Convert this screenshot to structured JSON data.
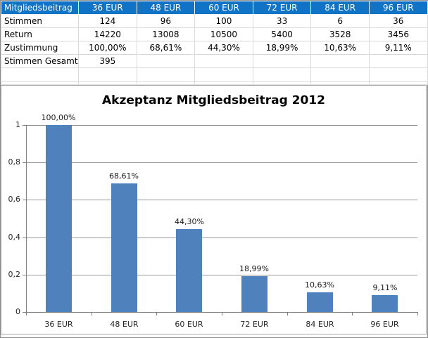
{
  "table": {
    "header": [
      "Mitgliedsbeitrag",
      "36 EUR",
      "48 EUR",
      "60 EUR",
      "72 EUR",
      "84 EUR",
      "96 EUR"
    ],
    "rows": [
      {
        "label": "Stimmen",
        "values": [
          "124",
          "96",
          "100",
          "33",
          "6",
          "36"
        ]
      },
      {
        "label": "Return",
        "values": [
          "14220",
          "13008",
          "10500",
          "5400",
          "3528",
          "3456"
        ]
      },
      {
        "label": "Zustimmung",
        "values": [
          "100,00%",
          "68,61%",
          "44,30%",
          "18,99%",
          "10,63%",
          "9,11%"
        ]
      },
      {
        "label": "Stimmen Gesamt",
        "values": [
          "395",
          "",
          "",
          "",
          "",
          ""
        ]
      },
      {
        "label": "",
        "values": [
          "",
          "",
          "",
          "",
          "",
          ""
        ]
      }
    ]
  },
  "chart_data": {
    "type": "bar",
    "title": "Akzeptanz Mitgliedsbeitrag 2012",
    "categories": [
      "36 EUR",
      "48 EUR",
      "60 EUR",
      "72 EUR",
      "84 EUR",
      "96 EUR"
    ],
    "values": [
      1.0,
      0.6861,
      0.443,
      0.1899,
      0.1063,
      0.0911
    ],
    "data_labels": [
      "100,00%",
      "68,61%",
      "44,30%",
      "18,99%",
      "10,63%",
      "9,11%"
    ],
    "y_tick_labels": [
      "1",
      "0,8",
      "0,6",
      "0,4",
      "0,2",
      "0"
    ],
    "y_tick_values": [
      1.0,
      0.8,
      0.6,
      0.4,
      0.2,
      0
    ],
    "ylim": [
      0,
      1
    ],
    "xlabel": "",
    "ylabel": "",
    "grid": true,
    "legend_position": "none"
  },
  "colors": {
    "header_bg": "#1173c6",
    "header_text": "#ffffff",
    "bar_fill": "#4f81bd",
    "gridline": "#969696",
    "axis": "#808080",
    "table_gridline": "#d9d9d9"
  }
}
